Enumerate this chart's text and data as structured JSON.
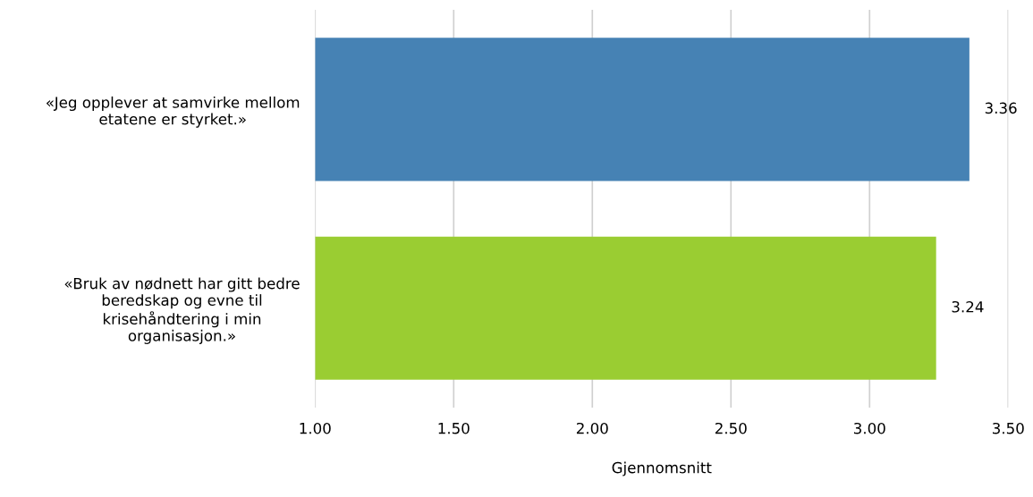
{
  "chart_data": {
    "type": "bar",
    "orientation": "horizontal",
    "categories": [
      "«Jeg opplever at samvirke mellom\netatene er styrket.»",
      "«Bruk av nødnett har gitt bedre\nberedskap og evne til\nkrisehåndtering i min\norganisasjon.»"
    ],
    "values": [
      3.36,
      3.24
    ],
    "colors": [
      "#4682b4",
      "#9acd32"
    ],
    "xlabel": "Gjennomsnitt",
    "xlim": [
      1.0,
      3.5
    ],
    "xticks": [
      {
        "value": 1.0,
        "label": "1.00"
      },
      {
        "value": 1.5,
        "label": "1.50"
      },
      {
        "value": 2.0,
        "label": "2.00"
      },
      {
        "value": 2.5,
        "label": "2.50"
      },
      {
        "value": 3.0,
        "label": "3.00"
      },
      {
        "value": 3.5,
        "label": "3.50"
      }
    ],
    "grid": "x",
    "data_labels": true
  }
}
